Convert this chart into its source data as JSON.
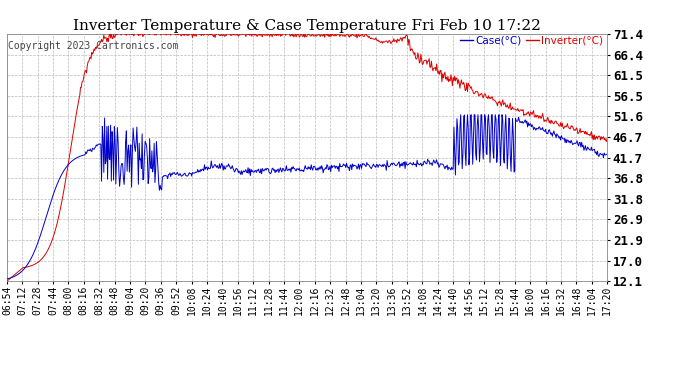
{
  "title": "Inverter Temperature & Case Temperature Fri Feb 10 17:22",
  "copyright": "Copyright 2023 Cartronics.com",
  "legend_case": "Case(°C)",
  "legend_inverter": "Inverter(°C)",
  "yticks": [
    12.1,
    17.0,
    21.9,
    26.9,
    31.8,
    36.8,
    41.7,
    46.7,
    51.6,
    56.5,
    61.5,
    66.4,
    71.4
  ],
  "xtick_labels": [
    "06:54",
    "07:12",
    "07:28",
    "07:44",
    "08:00",
    "08:16",
    "08:32",
    "08:48",
    "09:04",
    "09:20",
    "09:36",
    "09:52",
    "10:08",
    "10:24",
    "10:40",
    "10:56",
    "11:12",
    "11:28",
    "11:44",
    "12:00",
    "12:16",
    "12:32",
    "12:48",
    "13:04",
    "13:20",
    "13:36",
    "13:52",
    "14:08",
    "14:24",
    "14:40",
    "14:56",
    "15:12",
    "15:28",
    "15:44",
    "16:00",
    "16:16",
    "16:32",
    "16:48",
    "17:04",
    "17:20"
  ],
  "ylim": [
    12.1,
    71.4
  ],
  "background_color": "#ffffff",
  "grid_color": "#bbbbbb",
  "case_color": "#0000cc",
  "inverter_color": "#dd0000",
  "title_fontsize": 11,
  "copyright_fontsize": 7,
  "tick_fontsize": 7,
  "ytick_fontsize": 9
}
